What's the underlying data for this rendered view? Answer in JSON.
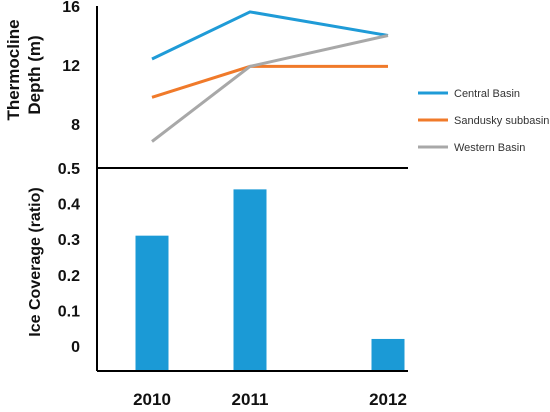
{
  "chart_data": [
    {
      "type": "line",
      "ylabel_line1": "Thermocline",
      "ylabel_line2": "Depth (m)",
      "x": [
        "2010",
        "2011",
        "2012"
      ],
      "yticks": [
        "16",
        "12",
        "8"
      ],
      "ytick_values": [
        16,
        12,
        8
      ],
      "ylim": [
        5,
        16
      ],
      "series": [
        {
          "name": "Central Basin",
          "color": "#1f9bd7",
          "values": [
            12.4,
            15.6,
            14.0
          ]
        },
        {
          "name": "Sandusky subbasin",
          "color": "#f07a2a",
          "values": [
            9.8,
            11.9,
            11.9
          ]
        },
        {
          "name": "Western Basin",
          "color": "#a8a8a8",
          "values": [
            6.8,
            11.9,
            14.0
          ]
        }
      ],
      "legend_position": "right"
    },
    {
      "type": "bar",
      "ylabel": "Ice Coverage  (ratio)",
      "categories": [
        "2010",
        "2011",
        "2012"
      ],
      "values": [
        0.31,
        0.44,
        0.02
      ],
      "yticks": [
        "0.5",
        "0.4",
        "0.3",
        "0.2",
        "0.1",
        "0"
      ],
      "ytick_values": [
        0.5,
        0.4,
        0.3,
        0.2,
        0.1,
        0
      ],
      "ylim": [
        -0.07,
        0.5
      ],
      "color": "#1b9ad6"
    }
  ]
}
